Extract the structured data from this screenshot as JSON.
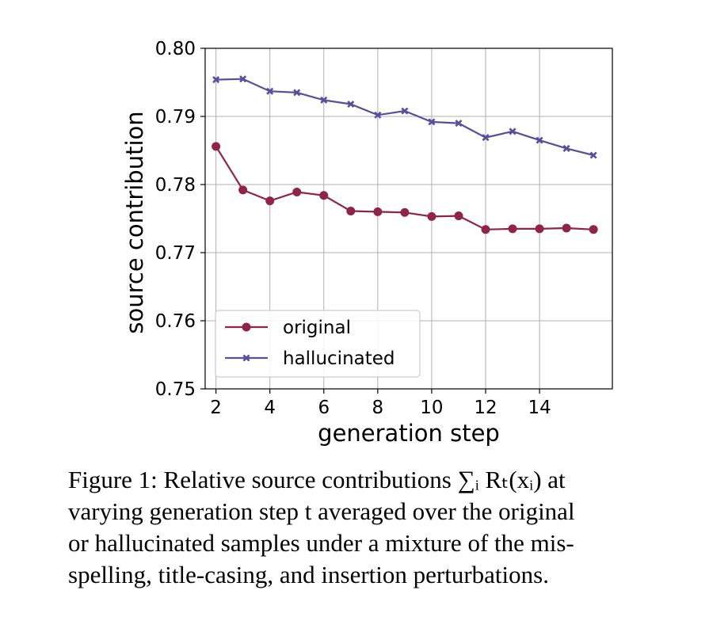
{
  "chart_data": {
    "type": "line",
    "xlabel": "generation step",
    "ylabel": "source contribution",
    "xlim": [
      1.6,
      16.7
    ],
    "ylim": [
      0.75,
      0.8
    ],
    "x_ticks": [
      2,
      4,
      6,
      8,
      10,
      12,
      14
    ],
    "x_tick_labels": [
      "2",
      "4",
      "6",
      "8",
      "10",
      "12",
      "14"
    ],
    "y_ticks": [
      0.75,
      0.76,
      0.77,
      0.78,
      0.79,
      0.8
    ],
    "y_tick_labels": [
      "0.75",
      "0.76",
      "0.77",
      "0.78",
      "0.79",
      "0.80"
    ],
    "grid": true,
    "legend_position": "lower-left",
    "x": [
      2,
      3,
      4,
      5,
      6,
      7,
      8,
      9,
      10,
      11,
      12,
      13,
      14,
      15,
      16
    ],
    "series": [
      {
        "name": "original",
        "marker": "circle",
        "color": "#8e2446",
        "values": [
          0.7856,
          0.7792,
          0.7776,
          0.7789,
          0.7784,
          0.7761,
          0.776,
          0.7759,
          0.7753,
          0.7754,
          0.7734,
          0.7735,
          0.7735,
          0.7736,
          0.7734
        ]
      },
      {
        "name": "hallucinated",
        "marker": "x",
        "color": "#5b4d9b",
        "values": [
          0.7954,
          0.7955,
          0.7937,
          0.7935,
          0.7924,
          0.7918,
          0.7902,
          0.7908,
          0.7892,
          0.789,
          0.7869,
          0.7878,
          0.7865,
          0.7853,
          0.7843
        ]
      }
    ]
  },
  "caption": {
    "line1": "Figure 1:  Relative source contributions ∑ᵢ Rₜ(xᵢ) at",
    "line2": "varying generation step t averaged over the original",
    "line3": "or hallucinated samples under a mixture of the mis-",
    "line4": "spelling, title-casing, and insertion perturbations."
  }
}
